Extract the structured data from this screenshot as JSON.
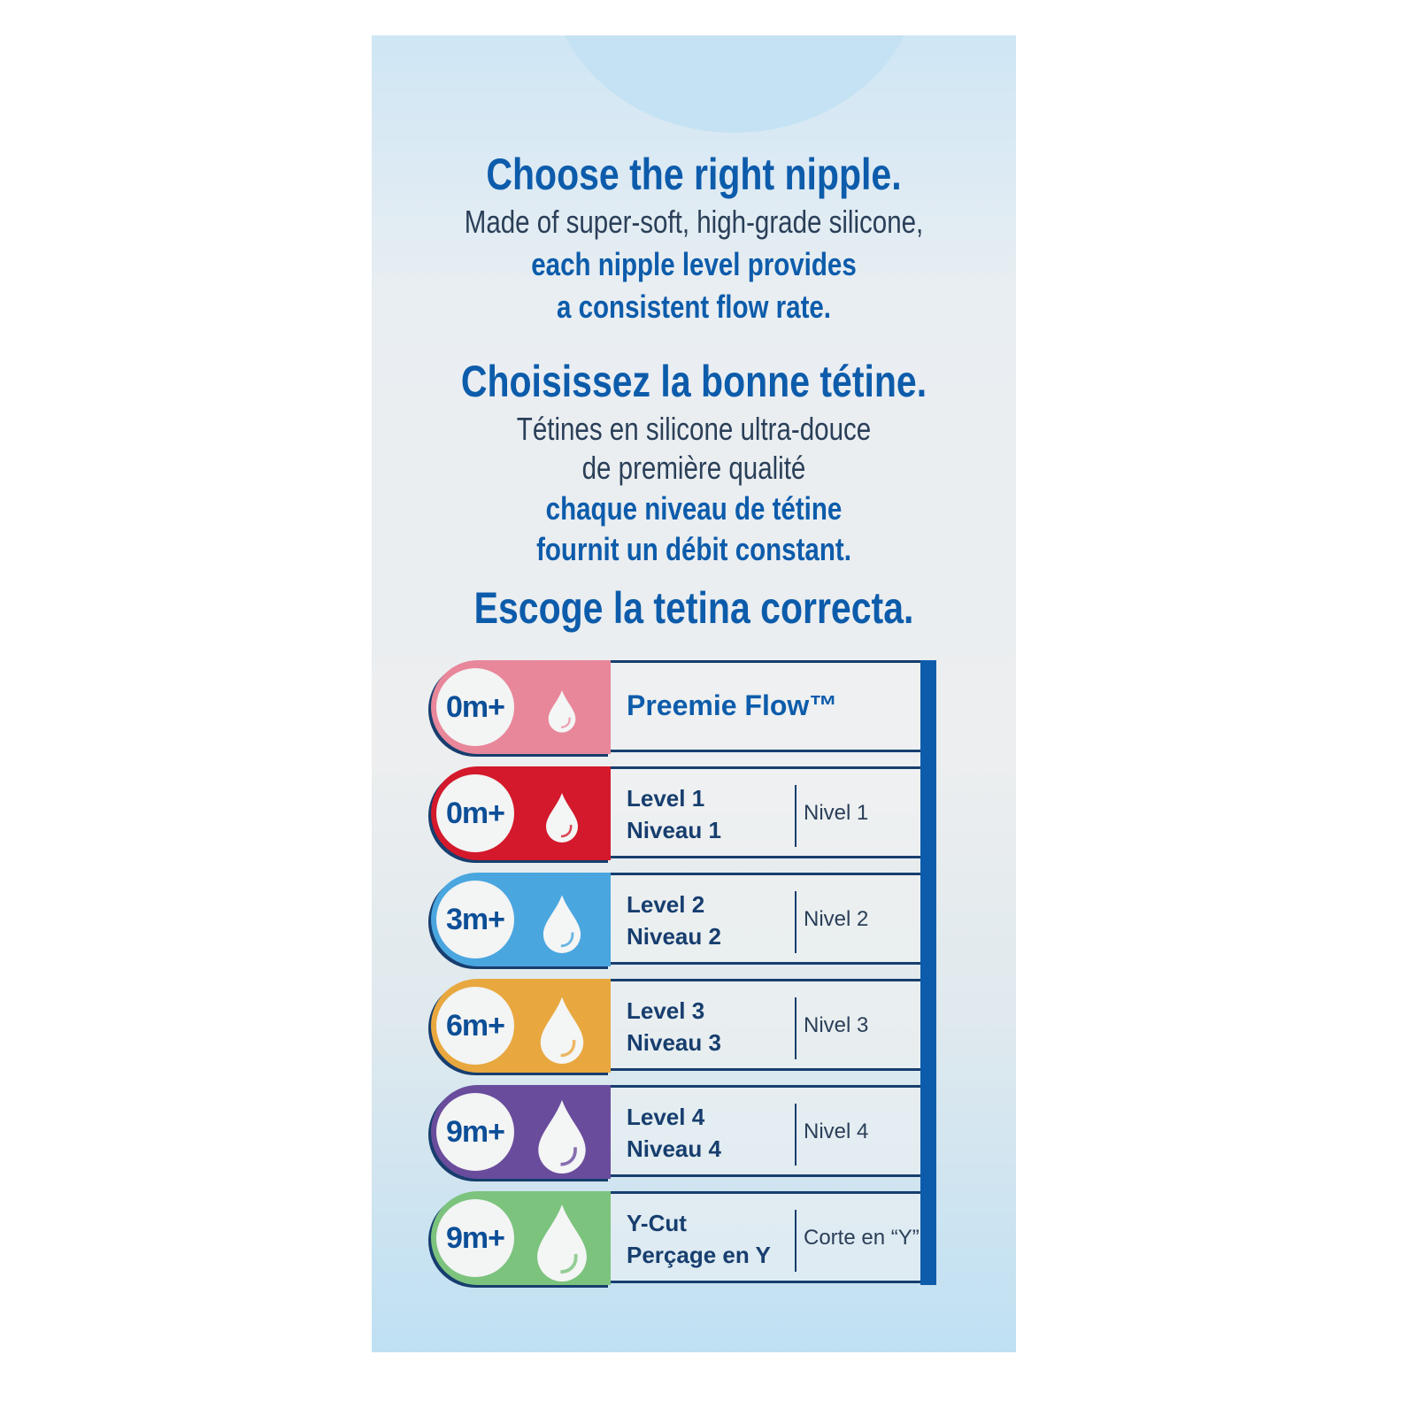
{
  "english": {
    "title": "Choose the right nipple.",
    "line1": "Made of super-soft, high-grade silicone,",
    "line2": "each nipple level provides",
    "line3": "a consistent flow rate."
  },
  "french": {
    "title": "Choisissez la bonne tétine.",
    "line1": "Tétines en silicone ultra-douce",
    "line2": "de première qualité",
    "line3": "chaque niveau de tétine",
    "line4": "fournit un débit constant."
  },
  "spanish": {
    "title": "Escoge la tetina correcta."
  },
  "levels": [
    {
      "age": "0m+",
      "name": "Preemie Flow™",
      "color": "#e8879a"
    },
    {
      "age": "0m+",
      "name": "Level 1",
      "name_fr": "Niveau 1",
      "name_es": "Nivel 1",
      "color": "#d3192b"
    },
    {
      "age": "3m+",
      "name": "Level 2",
      "name_fr": "Niveau 2",
      "name_es": "Nivel 2",
      "color": "#4aa6df"
    },
    {
      "age": "6m+",
      "name": "Level 3",
      "name_fr": "Niveau 3",
      "name_es": "Nivel 3",
      "color": "#e8a83f"
    },
    {
      "age": "9m+",
      "name": "Level 4",
      "name_fr": "Niveau 4",
      "name_es": "Nivel 4",
      "color": "#6a4c9c"
    },
    {
      "age": "9m+",
      "name": "Y-Cut",
      "name_fr": "Perçage en Y",
      "name_es": "Corte en “Y”",
      "color": "#7cc37e"
    }
  ]
}
